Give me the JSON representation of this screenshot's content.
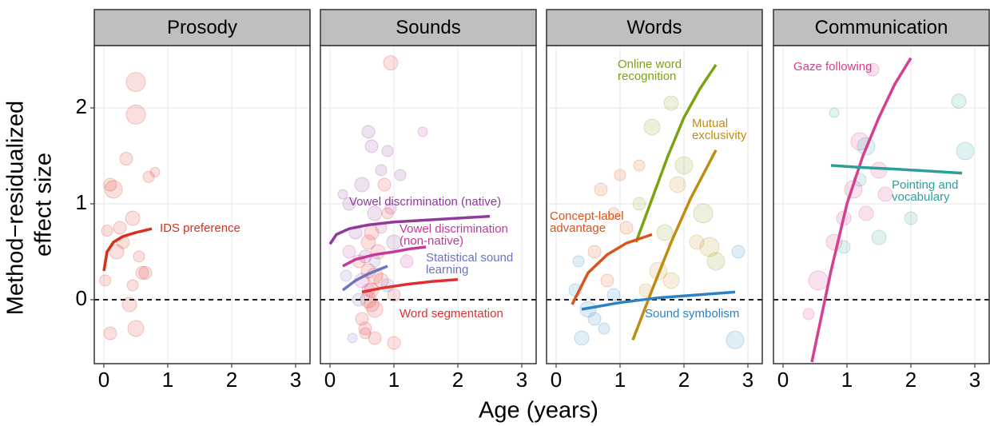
{
  "chart_data": {
    "type": "scatter",
    "xlabel": "Age (years)",
    "ylabel": [
      "Method−residualized",
      "effect size"
    ],
    "xlim": [
      -0.15,
      3.225
    ],
    "ylim": [
      -0.667,
      2.65
    ],
    "xticks": [
      0,
      1,
      2,
      3
    ],
    "yticks": [
      0,
      1,
      2
    ],
    "hline": 0,
    "grid": true,
    "panels": [
      {
        "title": "Prosody",
        "curves": [
          {
            "name": [
              "IDS preference"
            ],
            "color": "#d7301f",
            "x": [
              0,
              0.05,
              0.15,
              0.3,
              0.5,
              0.75
            ],
            "values": [
              0.3,
              0.5,
              0.6,
              0.66,
              0.7,
              0.74
            ],
            "points": {
              "x": [
                0.5,
                0.5,
                0.15,
                0.1,
                0.35,
                0.05,
                0.7,
                0.45,
                0.6,
                0.3,
                0.5,
                0.4,
                0.2,
                0.1,
                0.55,
                0.65,
                0.25,
                0.8,
                0.02,
                0.45
              ],
              "values": [
                2.27,
                1.93,
                1.15,
                1.2,
                1.47,
                0.72,
                1.28,
                0.85,
                0.28,
                0.6,
                -0.3,
                -0.05,
                0.5,
                -0.35,
                0.45,
                0.28,
                0.75,
                1.33,
                0.2,
                0.15
              ],
              "sizes": [
                12,
                12,
                11,
                8,
                8,
                7,
                7,
                9,
                8,
                8,
                10,
                9,
                9,
                8,
                7,
                8,
                8,
                6,
                7,
                7
              ]
            }
          }
        ]
      },
      {
        "title": "Sounds",
        "curves": [
          {
            "name": [
              "Vowel discrimination (native)"
            ],
            "color": "#8e3b9a",
            "x": [
              0,
              0.1,
              0.3,
              0.6,
              1,
              1.5,
              2,
              2.5
            ],
            "values": [
              0.58,
              0.68,
              0.74,
              0.78,
              0.81,
              0.83,
              0.85,
              0.87
            ],
            "points": {
              "x": [
                0.6,
                0.8,
                0.5,
                0.3,
                0.9,
                0.7,
                0.4,
                0.2,
                1.1,
                0.65,
                1.0,
                0.55
              ],
              "values": [
                1.75,
                1.35,
                1.2,
                1.0,
                1.55,
                0.9,
                0.7,
                1.1,
                1.3,
                1.6,
                0.6,
                0.45
              ],
              "sizes": [
                8,
                7,
                9,
                8,
                7,
                9,
                8,
                6,
                7,
                8,
                9,
                8
              ]
            }
          },
          {
            "name": [
              "Vowel discrimination",
              "(non-native)"
            ],
            "color": "#c4399b",
            "x": [
              0.2,
              0.4,
              0.7,
              1,
              1.25,
              1.5
            ],
            "values": [
              0.35,
              0.42,
              0.47,
              0.5,
              0.53,
              0.55
            ],
            "points": {
              "x": [
                0.3,
                0.5,
                0.8,
                1.2,
                0.6,
                0.95,
                1.45
              ],
              "values": [
                0.5,
                0.2,
                0.75,
                0.4,
                0.1,
                0.95,
                1.75
              ],
              "sizes": [
                8,
                9,
                7,
                8,
                8,
                7,
                6
              ]
            }
          },
          {
            "name": [
              "Statistical sound",
              "learning"
            ],
            "color": "#6a73c4",
            "x": [
              0.2,
              0.4,
              0.6,
              0.9
            ],
            "values": [
              0.1,
              0.2,
              0.27,
              0.35
            ],
            "points": {
              "x": [
                0.25,
                0.45,
                0.7,
                0.9,
                0.35
              ],
              "values": [
                0.25,
                0.0,
                0.4,
                0.15,
                -0.4
              ],
              "sizes": [
                7,
                8,
                7,
                8,
                6
              ]
            }
          },
          {
            "name": [
              "Word segmentation"
            ],
            "color": "#e02f2f",
            "x": [
              0.5,
              0.8,
              1.2,
              1.6,
              2
            ],
            "values": [
              0.08,
              0.12,
              0.16,
              0.19,
              0.21
            ],
            "points": {
              "x": [
                0.6,
                0.65,
                0.7,
                0.55,
                0.75,
                0.6,
                0.5,
                0.8,
                0.7,
                0.65,
                0.9,
                1.0,
                0.45,
                0.6,
                0.7,
                0.95,
                0.85,
                0.55,
                1.0,
                0.65
              ],
              "values": [
                0.3,
                0.1,
                -0.1,
                -0.3,
                0.5,
                0.0,
                -0.2,
                0.2,
                -0.4,
                0.7,
                0.9,
                -0.45,
                0.4,
                0.6,
                0.25,
                2.47,
                1.2,
                -0.35,
                0.05,
                -0.05
              ],
              "sizes": [
                9,
                9,
                10,
                8,
                9,
                10,
                8,
                9,
                8,
                9,
                7,
                8,
                8,
                9,
                10,
                9,
                8,
                7,
                8,
                9
              ]
            }
          }
        ]
      },
      {
        "title": "Words",
        "curves": [
          {
            "name": [
              "Online word",
              "recognition"
            ],
            "color": "#7aa312",
            "x": [
              1.25,
              1.5,
              1.75,
              2,
              2.25,
              2.5
            ],
            "values": [
              0.6,
              1.05,
              1.5,
              1.9,
              2.2,
              2.45
            ],
            "points": {
              "x": [
                1.5,
                1.8,
                2.0,
                2.3,
                1.3,
                1.7,
                2.5
              ],
              "values": [
                1.8,
                2.05,
                1.4,
                0.9,
                1.0,
                0.7,
                0.4
              ],
              "sizes": [
                10,
                9,
                11,
                12,
                8,
                10,
                11
              ]
            }
          },
          {
            "name": [
              "Mutual",
              "exclusivity"
            ],
            "color": "#c08b13",
            "x": [
              1.2,
              1.5,
              1.8,
              2.1,
              2.5
            ],
            "values": [
              -0.42,
              0.1,
              0.6,
              1.05,
              1.56
            ],
            "points": {
              "x": [
                1.6,
                1.9,
                2.2,
                1.4,
                2.4,
                1.8
              ],
              "values": [
                0.3,
                1.2,
                0.6,
                0.1,
                0.55,
                0.2
              ],
              "sizes": [
                11,
                10,
                9,
                8,
                12,
                10
              ]
            }
          },
          {
            "name": [
              "Concept-label",
              "advantage"
            ],
            "color": "#d9541c",
            "x": [
              0.25,
              0.5,
              0.8,
              1.1,
              1.5
            ],
            "values": [
              -0.05,
              0.28,
              0.47,
              0.59,
              0.68
            ],
            "points": {
              "x": [
                0.7,
                0.9,
                1.1,
                1.0,
                0.6,
                1.3,
                0.8
              ],
              "values": [
                1.15,
                0.9,
                0.75,
                1.3,
                0.5,
                1.4,
                0.2
              ],
              "sizes": [
                8,
                7,
                8,
                7,
                8,
                7,
                8
              ]
            }
          },
          {
            "name": [
              "Sound symbolism"
            ],
            "color": "#2b83c6",
            "x": [
              0.4,
              1,
              1.6,
              2.2,
              2.8
            ],
            "values": [
              -0.1,
              -0.03,
              0.02,
              0.05,
              0.08
            ],
            "points": {
              "x": [
                0.3,
                0.4,
                0.6,
                0.5,
                0.9,
                2.8,
                2.85,
                0.35,
                0.75
              ],
              "values": [
                0.1,
                -0.4,
                -0.2,
                -0.1,
                0.05,
                -0.42,
                0.5,
                0.4,
                -0.3
              ],
              "sizes": [
                8,
                9,
                8,
                10,
                8,
                11,
                8,
                7,
                7
              ]
            }
          }
        ]
      },
      {
        "title": "Communication",
        "curves": [
          {
            "name": [
              "Gaze following"
            ],
            "color": "#d63e8f",
            "x": [
              0.45,
              0.75,
              1,
              1.25,
              1.5,
              1.75,
              2
            ],
            "values": [
              -0.65,
              0.3,
              1.0,
              1.5,
              1.9,
              2.25,
              2.52
            ],
            "points": {
              "x": [
                0.55,
                0.8,
                1.1,
                1.3,
                1.5,
                1.4,
                0.95,
                1.2,
                0.4,
                1.6
              ],
              "values": [
                0.2,
                0.6,
                1.15,
                0.9,
                1.35,
                2.4,
                0.85,
                1.65,
                -0.15,
                1.1
              ],
              "sizes": [
                12,
                10,
                11,
                9,
                10,
                8,
                9,
                11,
                7,
                9
              ]
            }
          },
          {
            "name": [
              "Pointing and",
              "vocabulary"
            ],
            "color": "#2aa198",
            "x": [
              0.75,
              1.2,
              1.8,
              2.3,
              2.8
            ],
            "values": [
              1.4,
              1.38,
              1.36,
              1.34,
              1.32
            ],
            "points": {
              "x": [
                0.8,
                1.3,
                1.5,
                2.0,
                2.75,
                2.85,
                1.2,
                0.95
              ],
              "values": [
                1.95,
                1.6,
                0.65,
                0.85,
                2.07,
                1.55,
                1.25,
                0.55
              ],
              "sizes": [
                6,
                11,
                9,
                8,
                9,
                11,
                8,
                8
              ]
            }
          }
        ]
      }
    ]
  }
}
